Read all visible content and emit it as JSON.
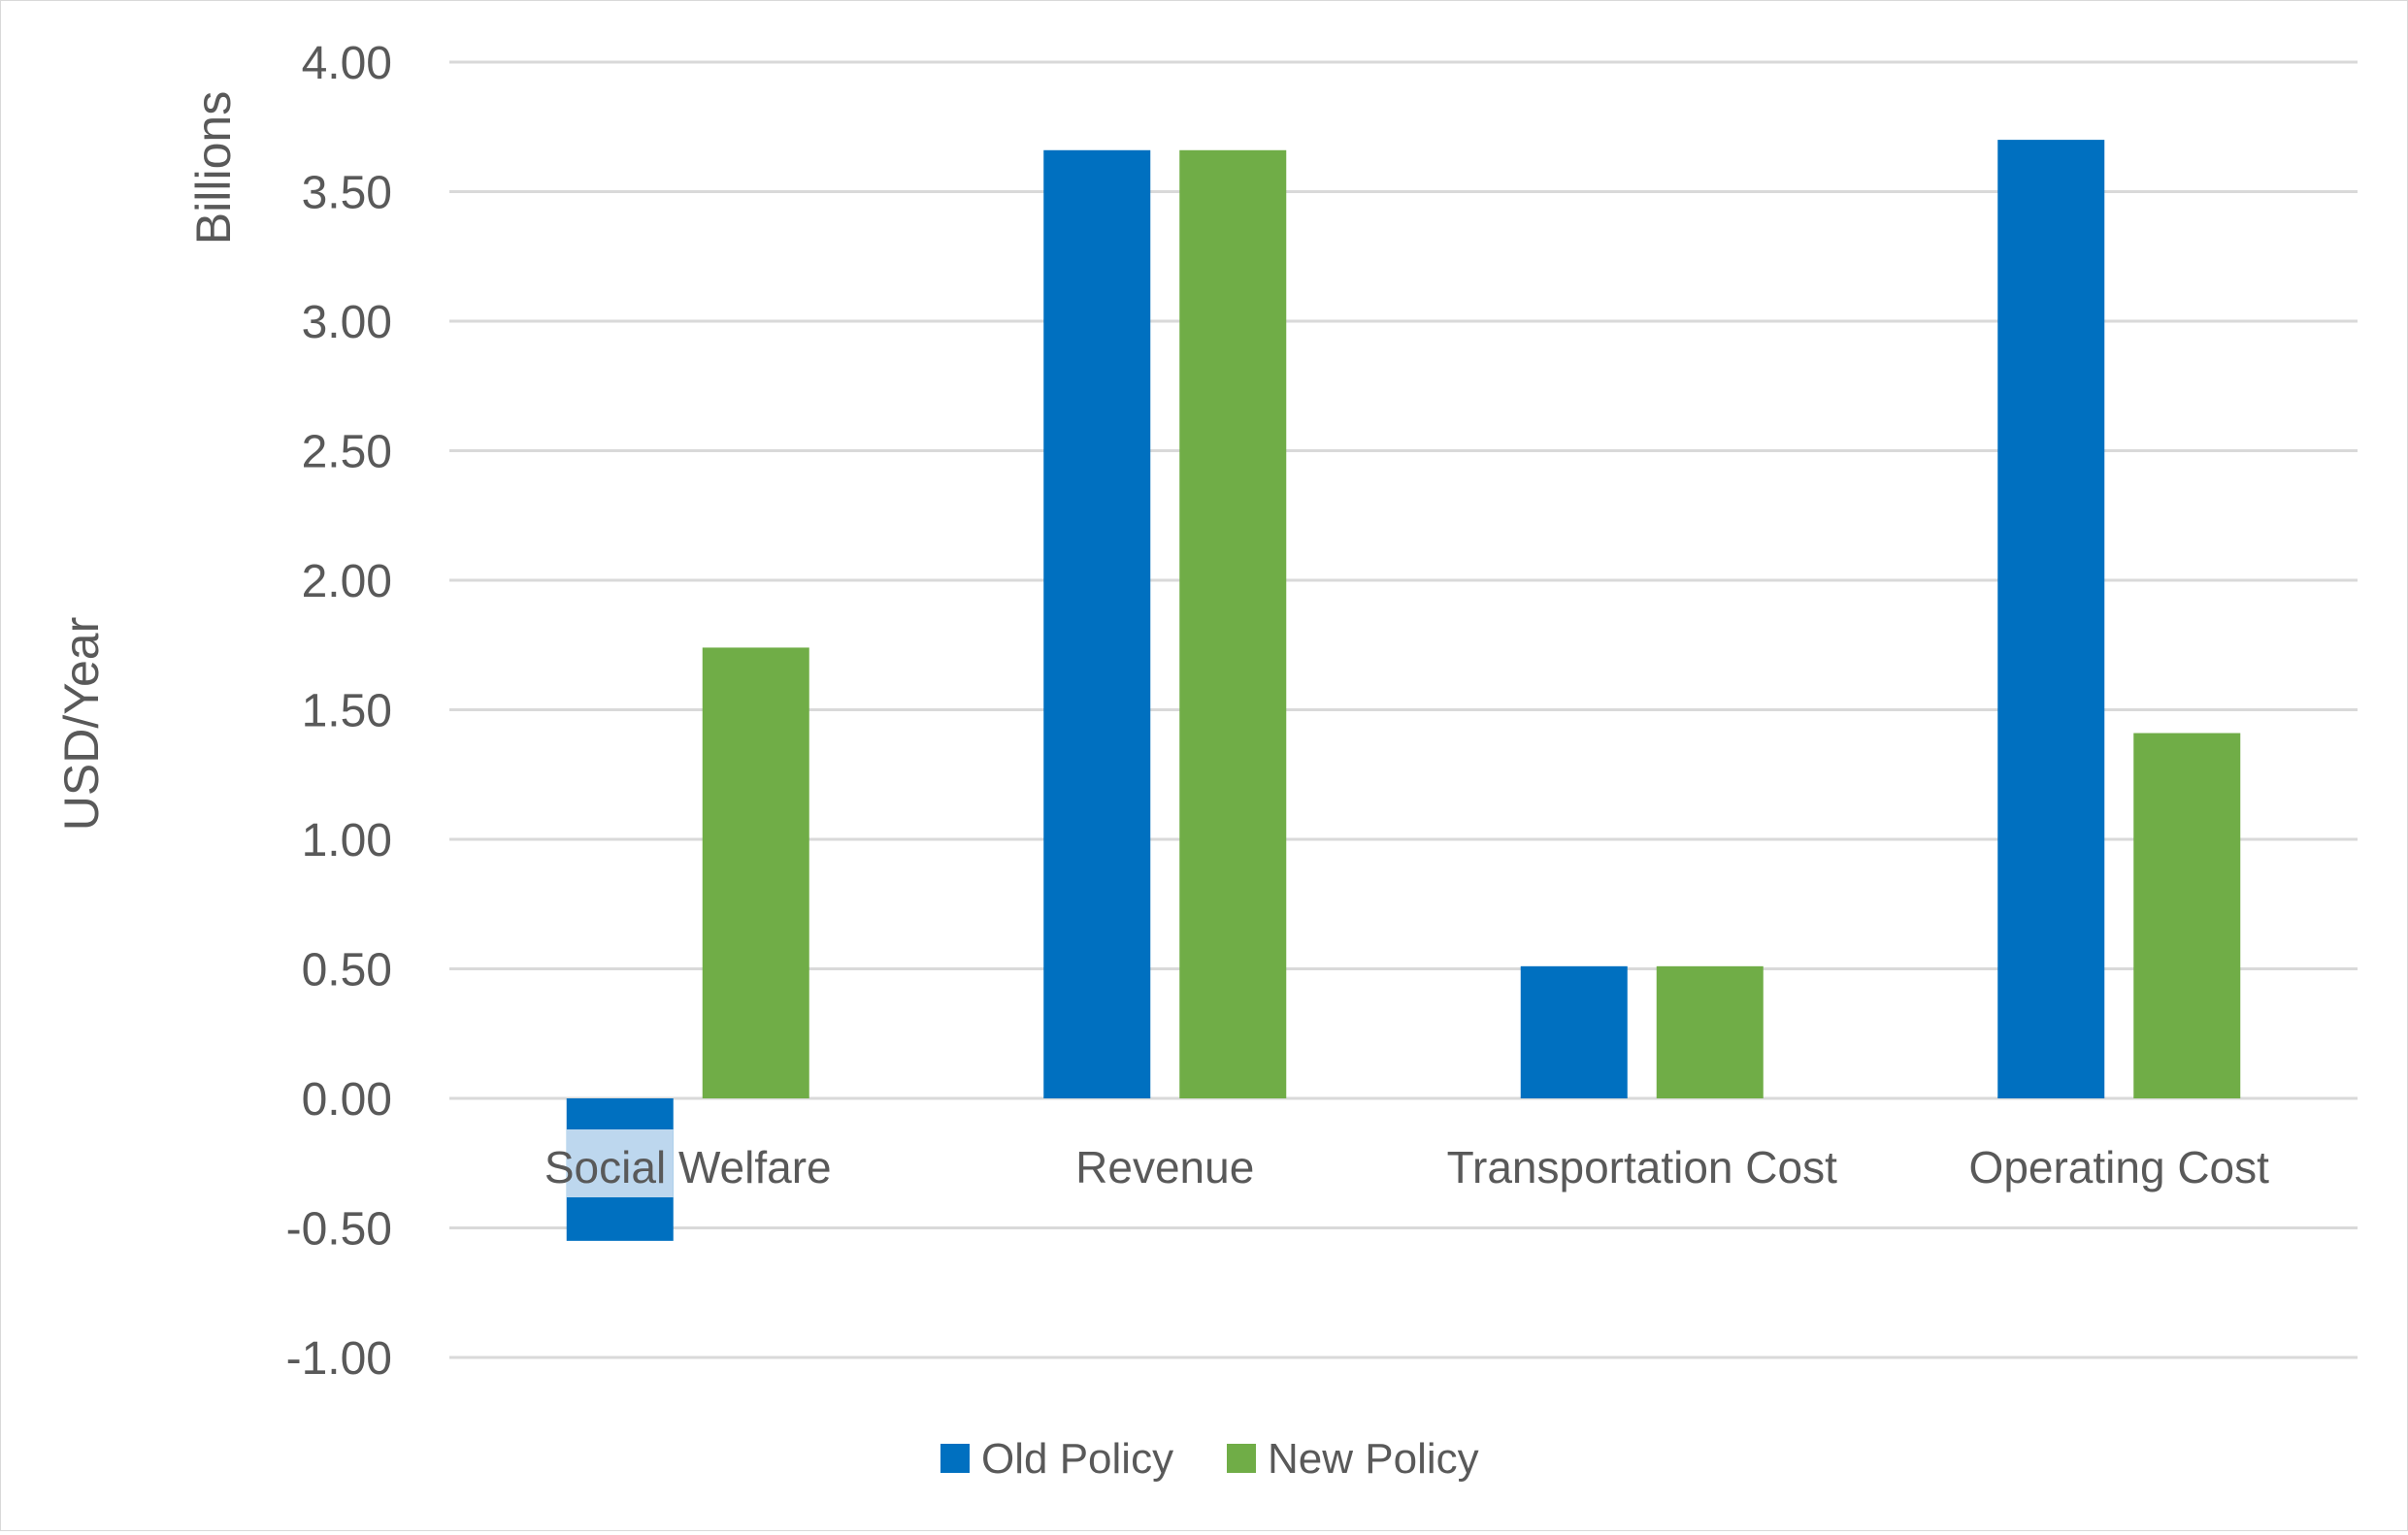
{
  "chart_data": {
    "type": "bar",
    "title": "",
    "xlabel": "",
    "ylabel": "USD/Year",
    "y_unit_label": "Billions",
    "categories": [
      "Social Welfare",
      "Revenue",
      "Transportation Cost",
      "Operating Cost"
    ],
    "series": [
      {
        "name": "Old Policy",
        "color": "#0070C0",
        "values": [
          -0.55,
          3.66,
          0.51,
          3.7
        ]
      },
      {
        "name": "New Policy",
        "color": "#70AD47",
        "values": [
          1.74,
          3.66,
          0.51,
          1.41
        ]
      }
    ],
    "ylim": [
      -1.0,
      4.0
    ],
    "y_ticks": [
      "4.00",
      "3.50",
      "3.00",
      "2.50",
      "2.00",
      "1.50",
      "1.00",
      "0.50",
      "0.00",
      "-0.50",
      "-1.00"
    ],
    "y_tick_values": [
      4.0,
      3.5,
      3.0,
      2.5,
      2.0,
      1.5,
      1.0,
      0.5,
      0.0,
      -0.5,
      -1.0
    ],
    "grid": true,
    "legend_position": "bottom-center"
  }
}
